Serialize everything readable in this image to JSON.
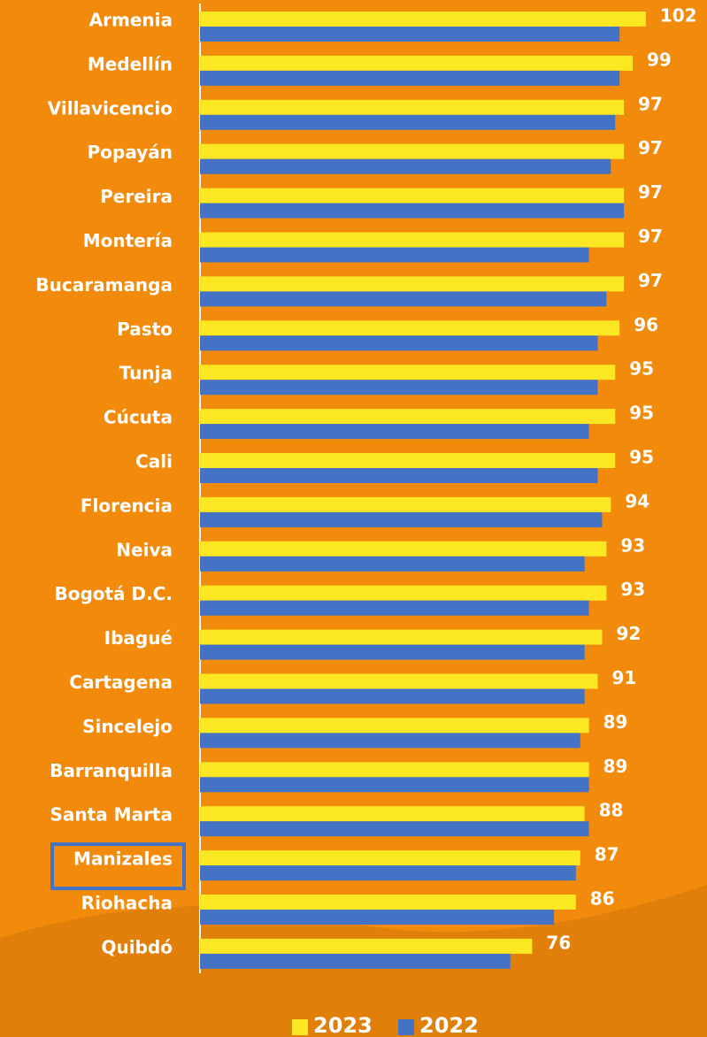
{
  "chart_data": {
    "type": "bar",
    "orientation": "horizontal",
    "categories": [
      "Armenia",
      "Medellín",
      "Villavicencio",
      "Popayán",
      "Pereira",
      "Montería",
      "Bucaramanga",
      "Pasto",
      "Tunja",
      "Cúcuta",
      "Cali",
      "Florencia",
      "Neiva",
      "Bogotá D.C.",
      "Ibagué",
      "Cartagena",
      "Sincelejo",
      "Barranquilla",
      "Santa Marta",
      "Manizales",
      "Riohacha",
      "Quibdó"
    ],
    "series": [
      {
        "name": "2023",
        "color": "#fbe822",
        "values": [
          102,
          99,
          97,
          97,
          97,
          97,
          97,
          96,
          95,
          95,
          95,
          94,
          93,
          93,
          92,
          91,
          89,
          89,
          88,
          87,
          86,
          76
        ],
        "show_labels": true
      },
      {
        "name": "2022",
        "color": "#4472c4",
        "values": [
          96,
          96,
          95,
          94,
          97,
          89,
          93,
          91,
          91,
          89,
          91,
          92,
          88,
          89,
          88,
          88,
          87,
          89,
          89,
          86,
          81,
          71
        ],
        "show_labels": false
      }
    ],
    "xlim": [
      0,
      116
    ],
    "highlight_category": 19,
    "legend": "bottom"
  }
}
